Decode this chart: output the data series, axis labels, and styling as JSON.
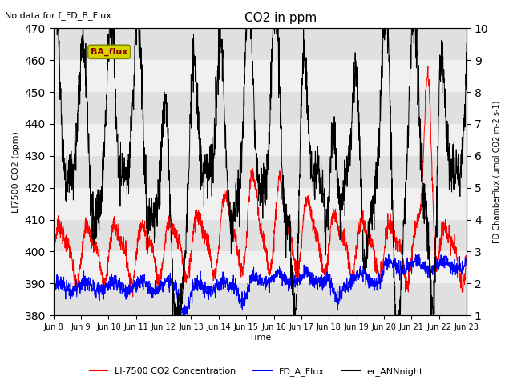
{
  "title": "CO2 in ppm",
  "topleft_text": "No data for f_FD_B_Flux",
  "annotation_text": "BA_flux",
  "xlabel": "Time",
  "ylabel_left": "LI7500 CO2 (ppm)",
  "ylabel_right": "FD Chamberflux (μmol CO2 m-2 s-1)",
  "ylim_left": [
    380,
    470
  ],
  "ylim_right": [
    1.0,
    10.0
  ],
  "xtick_labels": [
    "Jun 8",
    "Jun 9",
    "Jun 10",
    "Jun 11",
    "Jun 12",
    "Jun 13",
    "Jun 14",
    "Jun 15",
    "Jun 16",
    "Jun 17",
    "Jun 18",
    "Jun 19",
    "Jun 20",
    "Jun 21",
    "Jun 22",
    "Jun 23"
  ],
  "legend_labels": [
    "LI-7500 CO2 Concentration",
    "FD_A_Flux",
    "er_ANNnight"
  ],
  "legend_colors": [
    "red",
    "blue",
    "black"
  ],
  "line_colors": [
    "red",
    "blue",
    "black"
  ],
  "background_color": "#ffffff",
  "band_colors": [
    "#e0e0e0",
    "#f0f0f0"
  ],
  "annotation_bg": "#d4d400",
  "annotation_fg": "#8b0000",
  "annotation_edge": "#888800"
}
